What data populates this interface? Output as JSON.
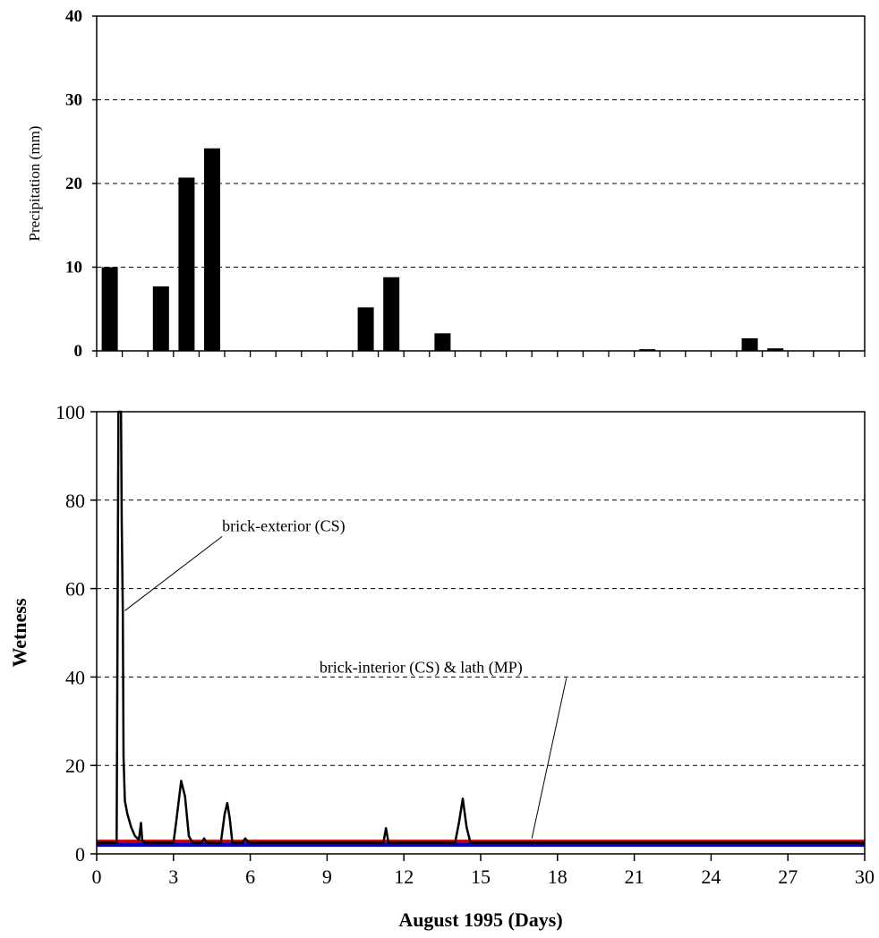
{
  "chart_data": [
    {
      "type": "bar",
      "xlabel": "",
      "ylabel": "Precipitation (mm)",
      "ylim": [
        0,
        40
      ],
      "yticks": [
        0,
        10,
        20,
        30,
        40
      ],
      "xlim": [
        0,
        30
      ],
      "grid": "horizontal dashed",
      "bar_color": "#000000",
      "values": [
        {
          "day": 1,
          "value": 10
        },
        {
          "day": 3,
          "value": 7.7
        },
        {
          "day": 4,
          "value": 20.7
        },
        {
          "day": 5,
          "value": 24.2
        },
        {
          "day": 11,
          "value": 5.2
        },
        {
          "day": 12,
          "value": 8.8
        },
        {
          "day": 14,
          "value": 2.1
        },
        {
          "day": 22,
          "value": 0.2
        },
        {
          "day": 26,
          "value": 1.5
        },
        {
          "day": 27,
          "value": 0.3
        }
      ]
    },
    {
      "type": "line",
      "xlabel": "August 1995 (Days)",
      "ylabel": "Wetness",
      "xlim": [
        0,
        30
      ],
      "ylim": [
        0,
        100
      ],
      "xticks": [
        0,
        3,
        6,
        9,
        12,
        15,
        18,
        21,
        24,
        27,
        30
      ],
      "yticks": [
        0,
        20,
        40,
        60,
        80,
        100
      ],
      "grid": "horizontal dashed",
      "series": [
        {
          "name": "brick-exterior (CS)",
          "color": "#000000",
          "points": [
            [
              0,
              2.5
            ],
            [
              0.78,
              2.5
            ],
            [
              0.82,
              60
            ],
            [
              0.85,
              100
            ],
            [
              0.95,
              100
            ],
            [
              0.98,
              75
            ],
            [
              1.02,
              55
            ],
            [
              1.05,
              22
            ],
            [
              1.1,
              12
            ],
            [
              1.2,
              9
            ],
            [
              1.35,
              6
            ],
            [
              1.5,
              4
            ],
            [
              1.65,
              3.2
            ],
            [
              1.73,
              7
            ],
            [
              1.78,
              3
            ],
            [
              1.9,
              2.5
            ],
            [
              3.0,
              2.5
            ],
            [
              3.1,
              7
            ],
            [
              3.3,
              16.5
            ],
            [
              3.45,
              13
            ],
            [
              3.6,
              4
            ],
            [
              3.75,
              2.5
            ],
            [
              4.1,
              2.5
            ],
            [
              4.2,
              3.5
            ],
            [
              4.3,
              2.5
            ],
            [
              4.85,
              2.5
            ],
            [
              5.0,
              9
            ],
            [
              5.1,
              11.5
            ],
            [
              5.2,
              8
            ],
            [
              5.3,
              2.5
            ],
            [
              5.7,
              2.5
            ],
            [
              5.8,
              3.5
            ],
            [
              5.95,
              2.5
            ],
            [
              11.2,
              2.5
            ],
            [
              11.3,
              5.8
            ],
            [
              11.4,
              2.5
            ],
            [
              14.0,
              2.5
            ],
            [
              14.15,
              7
            ],
            [
              14.3,
              12.5
            ],
            [
              14.45,
              6
            ],
            [
              14.6,
              2.5
            ],
            [
              30,
              2.5
            ]
          ]
        },
        {
          "name": "brick-interior (CS) & lath (MP)",
          "colors": [
            "#0000cc",
            "#cc0000"
          ],
          "points": [
            [
              0,
              2.5
            ],
            [
              30,
              2.5
            ]
          ]
        }
      ],
      "annotations": [
        {
          "text": "brick-exterior (CS)",
          "x": 4.9,
          "y": 73,
          "points_to": [
            1.1,
            55
          ]
        },
        {
          "text": "brick-interior (CS) & lath (MP)",
          "x": 8.7,
          "y": 41,
          "points_to": [
            17,
            3.5
          ]
        }
      ]
    }
  ]
}
